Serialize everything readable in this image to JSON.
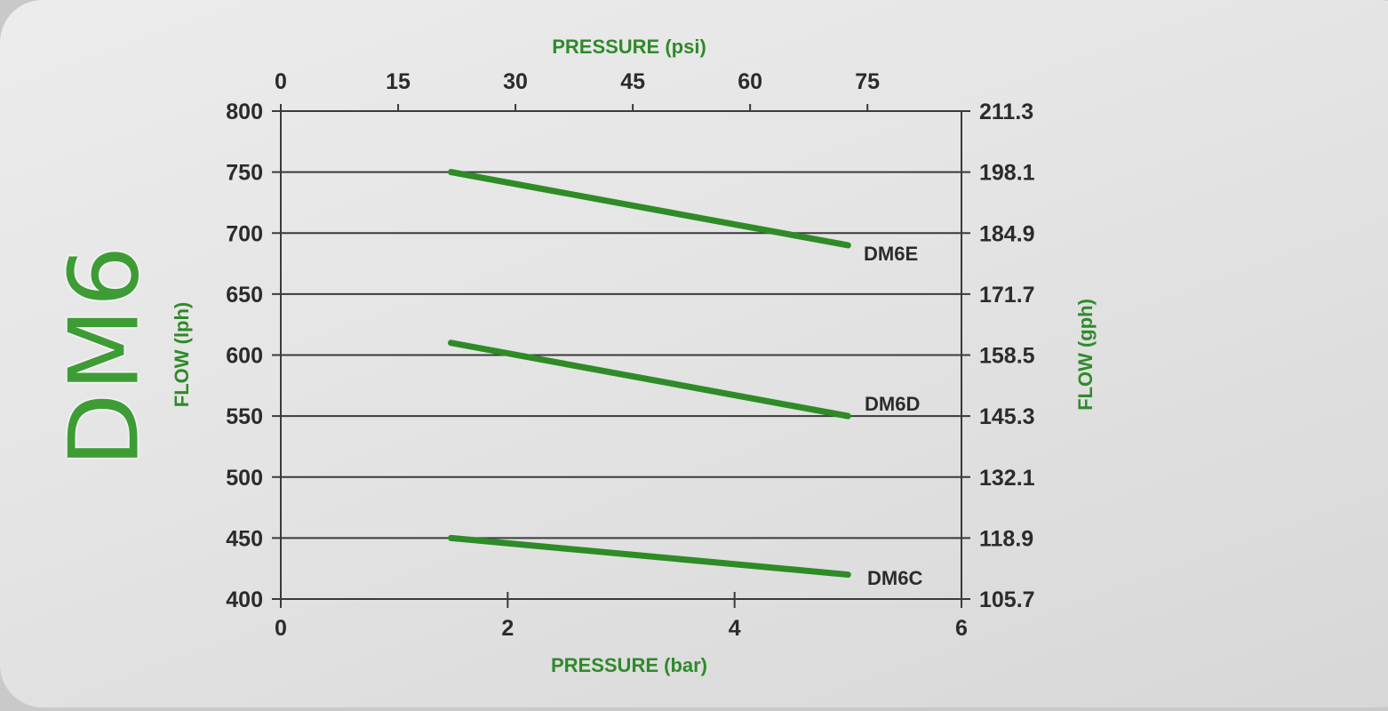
{
  "title": "DM6",
  "colors": {
    "accent_green": "#2f8a2a",
    "line_green": "#2e8b26",
    "grid": "#3a3a3a",
    "text": "#2b2b2b"
  },
  "axes": {
    "top_title": "PRESSURE (psi)",
    "bottom_title": "PRESSURE (bar)",
    "left_title": "FLOW (lph)",
    "right_title": "FLOW (gph)",
    "top_ticks": [
      "0",
      "15",
      "30",
      "45",
      "60",
      "75"
    ],
    "bottom_ticks": [
      "0",
      "2",
      "4",
      "6"
    ],
    "left_ticks": [
      "800",
      "750",
      "700",
      "650",
      "600",
      "550",
      "500",
      "450",
      "400"
    ],
    "right_ticks": [
      "211.3",
      "198.1",
      "184.9",
      "171.7",
      "158.5",
      "145.3",
      "132.1",
      "118.9",
      "105.7"
    ]
  },
  "series_labels": {
    "dm6e": "DM6E",
    "dm6d": "DM6D",
    "dm6c": "DM6C"
  },
  "chart_data": {
    "type": "line",
    "title": "DM6",
    "xlabel": "PRESSURE (bar)",
    "x2label": "PRESSURE (psi)",
    "ylabel": "FLOW (lph)",
    "y2label": "FLOW (gph)",
    "xlim": [
      0,
      6
    ],
    "ylim": [
      400,
      800
    ],
    "x2_ticks": [
      0,
      15,
      30,
      45,
      60,
      75
    ],
    "x_ticks": [
      0,
      2,
      4,
      6
    ],
    "y_ticks": [
      400,
      450,
      500,
      550,
      600,
      650,
      700,
      750,
      800
    ],
    "y2_ticks": [
      105.7,
      118.9,
      132.1,
      145.3,
      158.5,
      171.7,
      184.9,
      198.1,
      211.3
    ],
    "grid": "horizontal",
    "legend": "inline labels at line ends",
    "series": [
      {
        "name": "DM6E",
        "x": [
          1.5,
          5
        ],
        "values": [
          750,
          690
        ]
      },
      {
        "name": "DM6D",
        "x": [
          1.5,
          5
        ],
        "values": [
          610,
          550
        ]
      },
      {
        "name": "DM6C",
        "x": [
          1.5,
          5
        ],
        "values": [
          450,
          420
        ]
      }
    ]
  }
}
